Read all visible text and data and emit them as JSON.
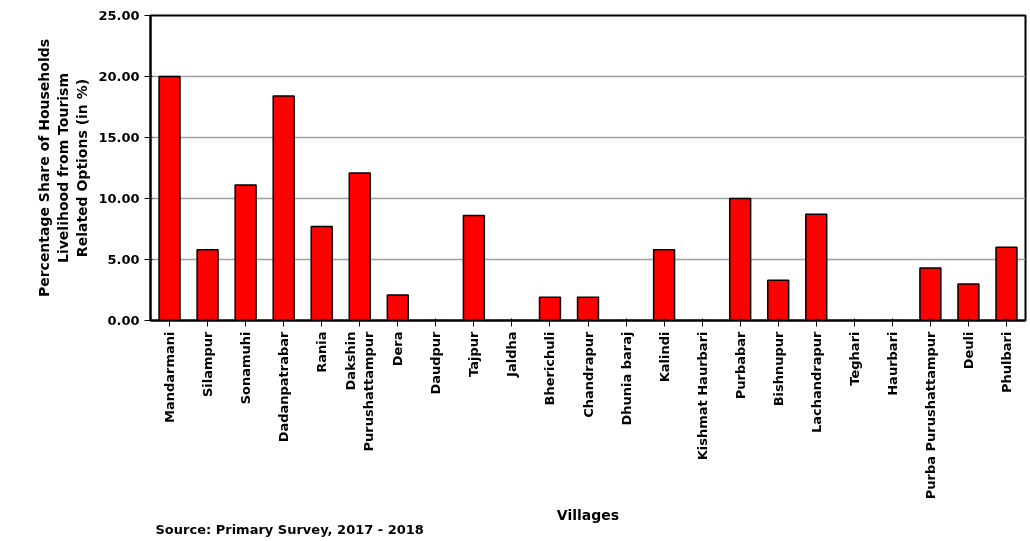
{
  "chart_data": {
    "type": "bar",
    "xlabel": "Villages",
    "ylabel": "Percentage Share of Households\nLivelihood from Tourism\nRelated Options (in %)",
    "categories": [
      "Mandarmani",
      "Silampur",
      "Sonamuhi",
      "Dadanpatrabar",
      "Rania",
      "Dakshin\nPurushattampur",
      "Dera",
      "Daudpur",
      "Tajpur",
      "Jaldha",
      "Bherichuli",
      "Chandrapur",
      "Dhunia baraj",
      "Kalindi",
      "Kishmat Haurbari",
      "Purbabar",
      "Bishnupur",
      "Lachandrapur",
      "Teghari",
      "Haurbari",
      "Purba Purushattampur",
      "Deuli",
      "Phulbari"
    ],
    "values": [
      20.0,
      5.8,
      11.1,
      18.4,
      7.7,
      12.1,
      2.1,
      0,
      8.6,
      0,
      1.9,
      1.9,
      0,
      5.8,
      0,
      10.0,
      3.3,
      8.7,
      0,
      0,
      4.3,
      3.0,
      6.0
    ],
    "color": "#ff0000",
    "ylim": [
      0,
      25
    ],
    "yticks": [
      {
        "value": 0,
        "label": "0.00"
      },
      {
        "value": 5,
        "label": "5.00"
      },
      {
        "value": 10,
        "label": "10.00"
      },
      {
        "value": 15,
        "label": "15.00"
      },
      {
        "value": 20,
        "label": "20.00"
      },
      {
        "value": 25,
        "label": "25.00"
      }
    ],
    "grid": "y",
    "annotations": [
      "Source: Primary Survey, 2017 - 2018"
    ]
  }
}
